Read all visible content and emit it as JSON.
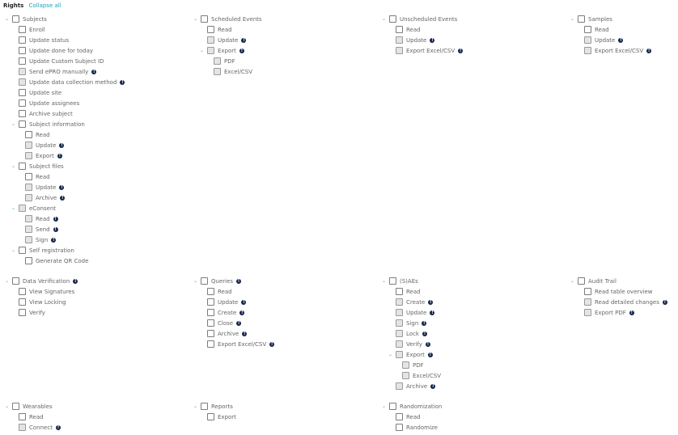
{
  "header": {
    "title": "Rights",
    "collapse_all": "Collapse all"
  },
  "colors": {
    "accent": "#1aa3b8",
    "info_icon": "#14254d"
  },
  "groups": [
    {
      "label": "Subjects",
      "children": [
        {
          "label": "Enroll"
        },
        {
          "label": "Update status"
        },
        {
          "label": "Update done for today"
        },
        {
          "label": "Update Custom Subject ID"
        },
        {
          "label": "Send ePRO manually",
          "info": true,
          "disabled": true
        },
        {
          "label": "Update data collection method",
          "info": true,
          "disabled": true
        },
        {
          "label": "Update site"
        },
        {
          "label": "Update assignees"
        },
        {
          "label": "Archive subject"
        },
        {
          "label": "Subject information",
          "children": [
            {
              "label": "Read"
            },
            {
              "label": "Update",
              "info": true,
              "disabled": true
            },
            {
              "label": "Export",
              "info": true,
              "disabled": true
            }
          ]
        },
        {
          "label": "Subject files",
          "children": [
            {
              "label": "Read"
            },
            {
              "label": "Update",
              "info": true,
              "disabled": true
            },
            {
              "label": "Archive",
              "info": true,
              "disabled": true
            }
          ]
        },
        {
          "label": "eConsent",
          "disabled": true,
          "children": [
            {
              "label": "Read",
              "info": true,
              "disabled": true
            },
            {
              "label": "Send",
              "info": true,
              "disabled": true
            },
            {
              "label": "Sign",
              "info": true,
              "disabled": true
            }
          ]
        },
        {
          "label": "Self registration",
          "children": [
            {
              "label": "Generate QR Code"
            }
          ]
        }
      ]
    },
    {
      "label": "Scheduled Events",
      "children": [
        {
          "label": "Read"
        },
        {
          "label": "Update",
          "info": true,
          "disabled": true
        },
        {
          "label": "Export",
          "info": true,
          "disabled": true,
          "children": [
            {
              "label": "PDF",
              "disabled": true
            },
            {
              "label": "Excel/CSV",
              "disabled": true
            }
          ]
        }
      ]
    },
    {
      "label": "Unscheduled Events",
      "children": [
        {
          "label": "Read"
        },
        {
          "label": "Update",
          "info": true,
          "disabled": true
        },
        {
          "label": "Export Excel/CSV",
          "info": true,
          "disabled": true
        }
      ]
    },
    {
      "label": "Samples",
      "children": [
        {
          "label": "Read"
        },
        {
          "label": "Update",
          "info": true,
          "disabled": true
        },
        {
          "label": "Export Excel/CSV",
          "info": true,
          "disabled": true
        }
      ]
    },
    {
      "label": "Data Verification",
      "info": true,
      "children": [
        {
          "label": "View Signatures"
        },
        {
          "label": "View Locking"
        },
        {
          "label": "Verify"
        }
      ]
    },
    {
      "label": "Queries",
      "info": true,
      "children": [
        {
          "label": "Read"
        },
        {
          "label": "Update",
          "info": true
        },
        {
          "label": "Create",
          "info": true
        },
        {
          "label": "Close",
          "info": true
        },
        {
          "label": "Archive",
          "info": true
        },
        {
          "label": "Export Excel/CSV",
          "info": true
        }
      ]
    },
    {
      "label": "(S)AEs",
      "children": [
        {
          "label": "Read"
        },
        {
          "label": "Create",
          "info": true,
          "disabled": true
        },
        {
          "label": "Update",
          "info": true,
          "disabled": true
        },
        {
          "label": "Sign",
          "info": true,
          "disabled": true
        },
        {
          "label": "Lock",
          "info": true,
          "disabled": true
        },
        {
          "label": "Verify",
          "info": true,
          "disabled": true
        },
        {
          "label": "Export",
          "info": true,
          "disabled": true,
          "children": [
            {
              "label": "PDF",
              "disabled": true
            },
            {
              "label": "Excel/CSV",
              "disabled": true
            }
          ]
        },
        {
          "label": "Archive",
          "info": true,
          "disabled": true
        }
      ]
    },
    {
      "label": "Audit Trail",
      "children": [
        {
          "label": "Read table overview"
        },
        {
          "label": "Read detailed changes",
          "info": true,
          "disabled": true
        },
        {
          "label": "Export PDF",
          "info": true,
          "disabled": true
        }
      ]
    },
    {
      "label": "Wearables",
      "children": [
        {
          "label": "Read"
        },
        {
          "label": "Connect",
          "info": true,
          "disabled": true
        }
      ]
    },
    {
      "label": "Reports",
      "children": [
        {
          "label": "Export"
        }
      ]
    },
    {
      "label": "Randomization",
      "children": [
        {
          "label": "Read"
        },
        {
          "label": "Randomize"
        }
      ]
    }
  ]
}
